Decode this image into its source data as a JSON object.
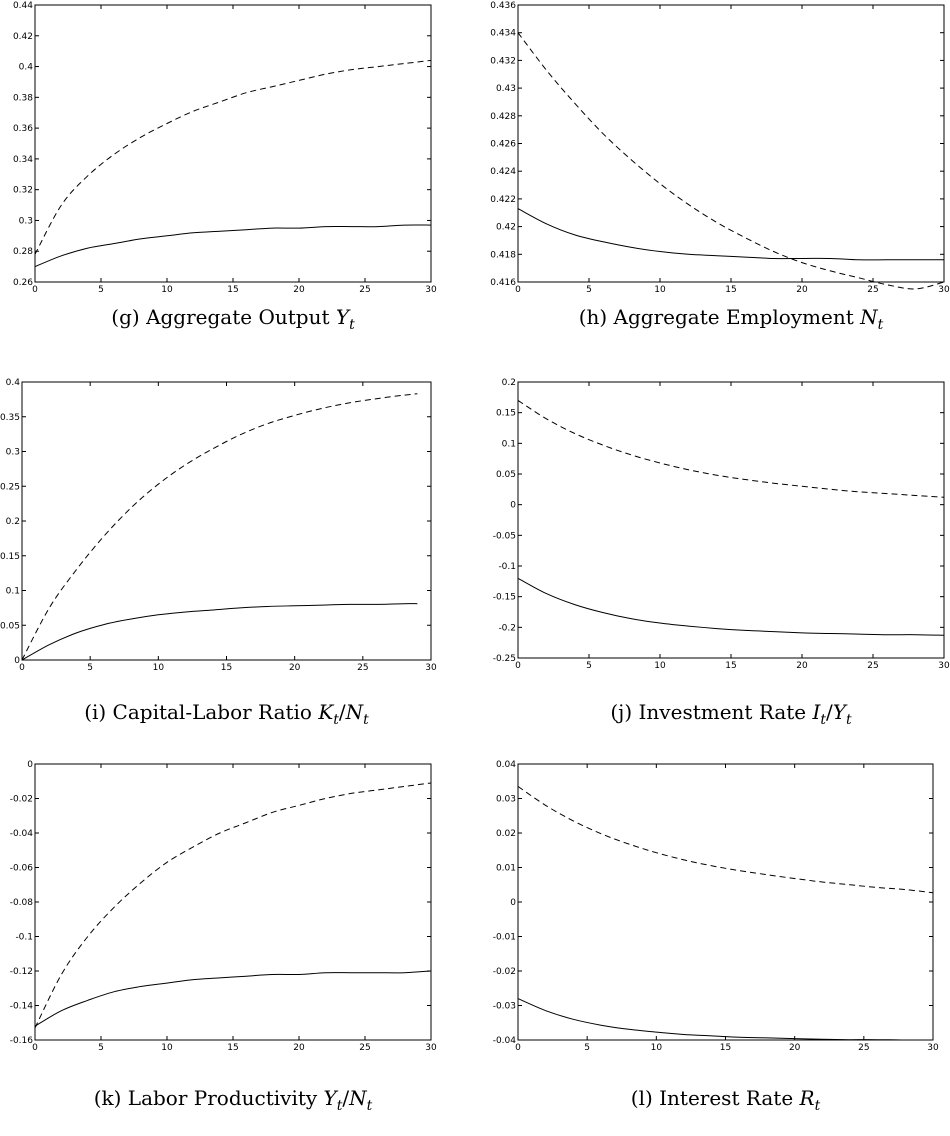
{
  "chart_data": [
    {
      "type": "line",
      "caption": {
        "text": "(g) Aggregate Output ",
        "math": "Y",
        "sub": "t",
        "post": ""
      },
      "xlim": [
        0,
        30
      ],
      "ylim": [
        0.26,
        0.44
      ],
      "x_ticks": [
        0,
        5,
        10,
        15,
        20,
        25,
        30
      ],
      "x_tick_labels": [
        "0",
        "5",
        "10",
        "15",
        "20",
        "25",
        "30"
      ],
      "y_ticks": [
        0.26,
        0.28,
        0.3,
        0.32,
        0.34,
        0.36,
        0.38,
        0.4,
        0.42,
        0.44
      ],
      "y_tick_labels": [
        "0.26",
        "0.28",
        "0.3",
        "0.32",
        "0.34",
        "0.36",
        "0.38",
        "0.4",
        "0.42",
        "0.44"
      ],
      "series": [
        {
          "style": "dashed",
          "x": [
            0,
            2,
            4,
            6,
            8,
            10,
            12,
            14,
            16,
            18,
            20,
            22,
            24,
            26,
            28,
            30
          ],
          "values": [
            0.278,
            0.31,
            0.329,
            0.343,
            0.354,
            0.363,
            0.371,
            0.377,
            0.383,
            0.387,
            0.391,
            0.395,
            0.398,
            0.4,
            0.402,
            0.404
          ]
        },
        {
          "style": "solid",
          "x": [
            0,
            2,
            4,
            6,
            8,
            10,
            12,
            14,
            16,
            18,
            20,
            22,
            24,
            26,
            28,
            30
          ],
          "values": [
            0.27,
            0.277,
            0.282,
            0.285,
            0.288,
            0.29,
            0.292,
            0.293,
            0.294,
            0.295,
            0.295,
            0.296,
            0.296,
            0.296,
            0.297,
            0.297
          ]
        }
      ]
    },
    {
      "type": "line",
      "caption": {
        "text": "(h) Aggregate Employment ",
        "math": "N",
        "sub": "t",
        "post": ""
      },
      "xlim": [
        0,
        30
      ],
      "ylim": [
        0.416,
        0.436
      ],
      "x_ticks": [
        0,
        5,
        10,
        15,
        20,
        25,
        30
      ],
      "x_tick_labels": [
        "0",
        "5",
        "10",
        "15",
        "20",
        "25",
        "30"
      ],
      "y_ticks": [
        0.416,
        0.418,
        0.42,
        0.422,
        0.424,
        0.426,
        0.428,
        0.43,
        0.432,
        0.434,
        0.436
      ],
      "y_tick_labels": [
        "0.416",
        "0.418",
        "0.42",
        "0.422",
        "0.424",
        "0.426",
        "0.428",
        "0.43",
        "0.432",
        "0.434",
        "0.436"
      ],
      "series": [
        {
          "style": "dashed",
          "x": [
            0,
            2,
            4,
            6,
            8,
            10,
            12,
            14,
            16,
            18,
            20,
            22,
            24,
            26,
            28,
            30
          ],
          "values": [
            0.434,
            0.4313,
            0.4289,
            0.4267,
            0.4248,
            0.4231,
            0.4216,
            0.4203,
            0.4192,
            0.4182,
            0.4174,
            0.4168,
            0.4163,
            0.4158,
            0.4155,
            0.416
          ]
        },
        {
          "style": "solid",
          "x": [
            0,
            2,
            4,
            6,
            8,
            10,
            12,
            14,
            16,
            18,
            20,
            22,
            24,
            26,
            28,
            30
          ],
          "values": [
            0.4213,
            0.4202,
            0.4194,
            0.4189,
            0.4185,
            0.4182,
            0.418,
            0.4179,
            0.4178,
            0.4177,
            0.4177,
            0.4177,
            0.4176,
            0.4176,
            0.4176,
            0.4176
          ]
        }
      ]
    },
    {
      "type": "line",
      "caption": {
        "text": "(i) Capital-Labor Ratio ",
        "math": "K",
        "sub": "t",
        "post": "/N",
        "sub2": "t"
      },
      "xlim": [
        0,
        30
      ],
      "ylim": [
        0,
        0.4
      ],
      "x_ticks": [
        0,
        5,
        10,
        15,
        20,
        25,
        30
      ],
      "x_tick_labels": [
        "0",
        "5",
        "10",
        "15",
        "20",
        "25",
        "30"
      ],
      "y_ticks": [
        0,
        0.05,
        0.1,
        0.15,
        0.2,
        0.25,
        0.3,
        0.35,
        0.4
      ],
      "y_tick_labels": [
        "0",
        "0.05",
        "0.1",
        "0.15",
        "0.2",
        "0.25",
        "0.3",
        "0.35",
        "0.4"
      ],
      "series": [
        {
          "style": "dashed",
          "x": [
            0,
            2,
            4,
            6,
            8,
            10,
            12,
            14,
            16,
            18,
            20,
            22,
            24,
            26,
            28,
            29
          ],
          "values": [
            0.0,
            0.075,
            0.13,
            0.178,
            0.219,
            0.253,
            0.281,
            0.304,
            0.324,
            0.34,
            0.352,
            0.362,
            0.37,
            0.376,
            0.381,
            0.383
          ]
        },
        {
          "style": "solid",
          "x": [
            0,
            2,
            4,
            6,
            8,
            10,
            12,
            14,
            16,
            18,
            20,
            22,
            24,
            26,
            28,
            29
          ],
          "values": [
            0.0,
            0.022,
            0.039,
            0.051,
            0.059,
            0.065,
            0.069,
            0.072,
            0.075,
            0.077,
            0.078,
            0.079,
            0.08,
            0.08,
            0.081,
            0.081
          ]
        }
      ]
    },
    {
      "type": "line",
      "caption": {
        "text": "(j) Investment Rate ",
        "math": "I",
        "sub": "t",
        "post": "/Y",
        "sub2": "t"
      },
      "xlim": [
        0,
        30
      ],
      "ylim": [
        -0.25,
        0.2
      ],
      "x_ticks": [
        0,
        5,
        10,
        15,
        20,
        25,
        30
      ],
      "x_tick_labels": [
        "0",
        "5",
        "10",
        "15",
        "20",
        "25",
        "30"
      ],
      "y_ticks": [
        -0.25,
        -0.2,
        -0.15,
        -0.1,
        -0.05,
        0,
        0.05,
        0.1,
        0.15,
        0.2
      ],
      "y_tick_labels": [
        "-0.25",
        "-0.2",
        "-0.15",
        "-0.1",
        "-0.05",
        "0",
        "0.05",
        "0.1",
        "0.15",
        "0.2"
      ],
      "series": [
        {
          "style": "dashed",
          "x": [
            0,
            2,
            4,
            6,
            8,
            10,
            12,
            14,
            16,
            18,
            20,
            22,
            24,
            26,
            28,
            30
          ],
          "values": [
            0.17,
            0.14,
            0.116,
            0.097,
            0.081,
            0.068,
            0.057,
            0.048,
            0.041,
            0.035,
            0.03,
            0.025,
            0.021,
            0.018,
            0.015,
            0.012
          ]
        },
        {
          "style": "solid",
          "x": [
            0,
            2,
            4,
            6,
            8,
            10,
            12,
            14,
            16,
            18,
            20,
            22,
            24,
            26,
            28,
            30
          ],
          "values": [
            -0.12,
            -0.145,
            -0.163,
            -0.176,
            -0.186,
            -0.193,
            -0.198,
            -0.202,
            -0.205,
            -0.207,
            -0.209,
            -0.21,
            -0.211,
            -0.212,
            -0.212,
            -0.213
          ]
        }
      ]
    },
    {
      "type": "line",
      "caption": {
        "text": "(k) Labor Productivity ",
        "math": "Y",
        "sub": "t",
        "post": "/N",
        "sub2": "t"
      },
      "xlim": [
        0,
        30
      ],
      "ylim": [
        -0.16,
        0
      ],
      "x_ticks": [
        0,
        5,
        10,
        15,
        20,
        25,
        30
      ],
      "x_tick_labels": [
        "0",
        "5",
        "10",
        "15",
        "20",
        "25",
        "30"
      ],
      "y_ticks": [
        -0.16,
        -0.14,
        -0.12,
        -0.1,
        -0.08,
        -0.06,
        -0.04,
        -0.02,
        0
      ],
      "y_tick_labels": [
        "-0.16",
        "-0.14",
        "-0.12",
        "-0.1",
        "-0.08",
        "-0.06",
        "-0.04",
        "-0.02",
        "0"
      ],
      "series": [
        {
          "style": "dashed",
          "x": [
            0,
            2,
            4,
            6,
            8,
            10,
            12,
            14,
            16,
            18,
            20,
            22,
            24,
            26,
            28,
            30
          ],
          "values": [
            -0.153,
            -0.122,
            -0.1,
            -0.083,
            -0.069,
            -0.057,
            -0.048,
            -0.04,
            -0.034,
            -0.028,
            -0.024,
            -0.02,
            -0.017,
            -0.015,
            -0.013,
            -0.011
          ]
        },
        {
          "style": "solid",
          "x": [
            0,
            2,
            4,
            6,
            8,
            10,
            12,
            14,
            16,
            18,
            20,
            22,
            24,
            26,
            28,
            30
          ],
          "values": [
            -0.152,
            -0.143,
            -0.137,
            -0.132,
            -0.129,
            -0.127,
            -0.125,
            -0.124,
            -0.123,
            -0.122,
            -0.122,
            -0.121,
            -0.121,
            -0.121,
            -0.121,
            -0.12
          ]
        }
      ]
    },
    {
      "type": "line",
      "caption": {
        "text": "(l) Interest Rate ",
        "math": "R",
        "sub": "t",
        "post": ""
      },
      "xlim": [
        0,
        30
      ],
      "ylim": [
        -0.04,
        0.04
      ],
      "x_ticks": [
        0,
        5,
        10,
        15,
        20,
        25,
        30
      ],
      "x_tick_labels": [
        "0",
        "5",
        "10",
        "15",
        "20",
        "25",
        "30"
      ],
      "y_ticks": [
        -0.04,
        -0.03,
        -0.02,
        -0.01,
        0,
        0.01,
        0.02,
        0.03,
        0.04
      ],
      "y_tick_labels": [
        "-0.04",
        "-0.03",
        "-0.02",
        "-0.01",
        "0",
        "0.01",
        "0.02",
        "0.03",
        "0.04"
      ],
      "series": [
        {
          "style": "dashed",
          "x": [
            0,
            2,
            4,
            6,
            8,
            10,
            12,
            14,
            16,
            18,
            20,
            22,
            24,
            26,
            28,
            30
          ],
          "values": [
            0.0335,
            0.028,
            0.0235,
            0.0198,
            0.0168,
            0.0143,
            0.0122,
            0.0105,
            0.0091,
            0.0079,
            0.0068,
            0.0058,
            0.005,
            0.0042,
            0.0036,
            0.0027
          ]
        },
        {
          "style": "solid",
          "x": [
            0,
            2,
            4,
            6,
            8,
            10,
            12,
            14,
            16,
            18,
            20,
            22,
            24,
            26,
            28,
            30
          ],
          "values": [
            -0.028,
            -0.0315,
            -0.034,
            -0.0357,
            -0.0369,
            -0.0377,
            -0.0384,
            -0.0388,
            -0.0392,
            -0.0394,
            -0.0396,
            -0.0398,
            -0.0399,
            -0.0399,
            -0.04,
            -0.04
          ]
        }
      ]
    }
  ]
}
